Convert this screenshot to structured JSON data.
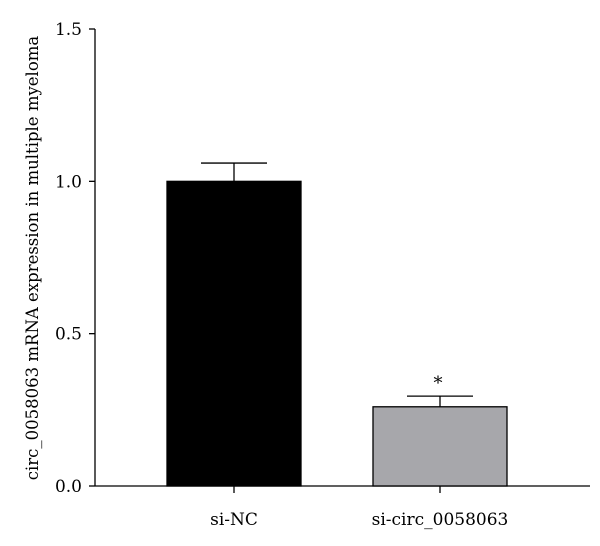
{
  "chart_data": {
    "type": "bar",
    "title": "",
    "xlabel": "",
    "ylabel": "circ_0058063 mRNA expression in multiple myeloma",
    "ylim": [
      0,
      1.5
    ],
    "yticks": [
      "0.0",
      "0.5",
      "1.0",
      "1.5"
    ],
    "categories": [
      "si-NC",
      "si-circ_0058063"
    ],
    "values": [
      1.0,
      0.26
    ],
    "errors": [
      0.06,
      0.035
    ],
    "bar_colors": [
      "#000000",
      "#a7a7ab"
    ],
    "annotations": [
      "",
      "*"
    ],
    "grid": false,
    "legend": "none"
  }
}
